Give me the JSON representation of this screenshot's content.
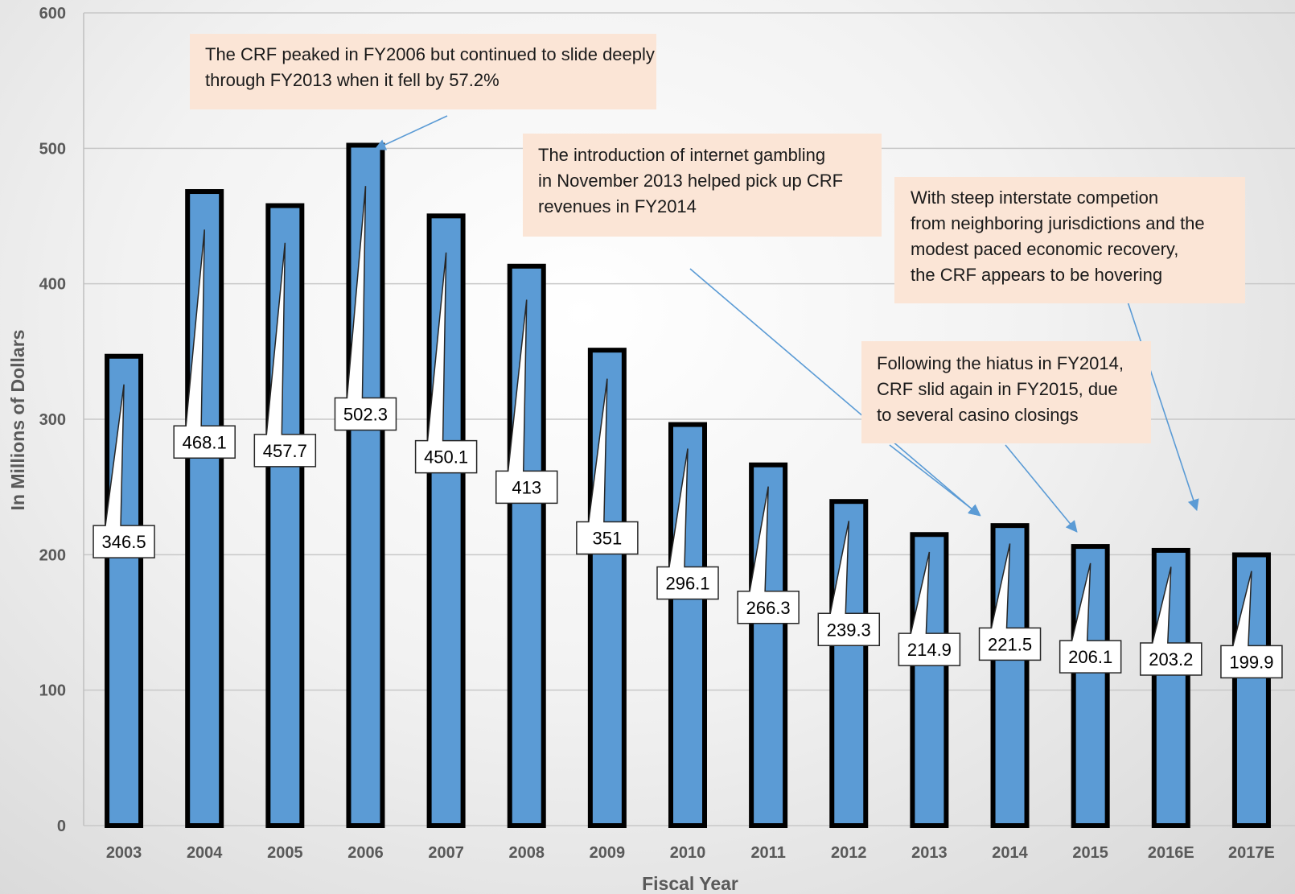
{
  "chart_data": {
    "type": "bar",
    "categories": [
      "2003",
      "2004",
      "2005",
      "2006",
      "2007",
      "2008",
      "2009",
      "2010",
      "2011",
      "2012",
      "2013",
      "2014",
      "2015",
      "2016E",
      "2017E"
    ],
    "values": [
      346.5,
      468.1,
      457.7,
      502.3,
      450.1,
      413,
      351,
      296.1,
      266.3,
      239.3,
      214.9,
      221.5,
      206.1,
      203.2,
      199.9
    ],
    "data_labels": [
      "346.5",
      "468.1",
      "457.7",
      "502.3",
      "450.1",
      "413",
      "351",
      "296.1",
      "266.3",
      "239.3",
      "214.9",
      "221.5",
      "206.1",
      "203.2",
      "199.9"
    ],
    "xlabel": "Fiscal Year",
    "ylabel": "In Millions of Dollars",
    "ylim": [
      0,
      600
    ],
    "yticks": [
      "0",
      "100",
      "200",
      "300",
      "400",
      "500",
      "600"
    ],
    "grid": true,
    "colors": {
      "bar": "#5b9bd5",
      "bar_border": "#000000",
      "callout": "#fbe5d6",
      "arrow": "#5b9bd5",
      "grid": "#c8c8c8"
    },
    "annotations": [
      {
        "text": "The CRF peaked in FY2006 but continued to slide deeply\nthrough FY2013 when it fell by 57.2%",
        "points_to": "2006"
      },
      {
        "text": "The introduction of internet gambling\nin November 2013 helped pick up CRF\nrevenues  in FY2014",
        "points_to": "2014"
      },
      {
        "text": "With steep interstate competion\nfrom neighboring jurisdictions and the\nmodest paced economic recovery,\nthe CRF appears to be hovering",
        "points_to": "2016E"
      },
      {
        "text": "Following the hiatus in FY2014,\nCRF slid again in FY2015, due\nto several casino closings",
        "points_to": "2015"
      }
    ]
  }
}
